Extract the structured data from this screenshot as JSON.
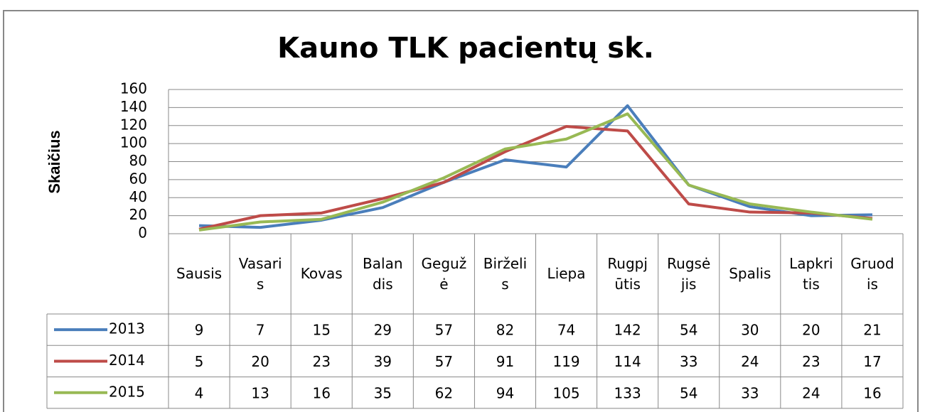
{
  "chart_data": {
    "type": "line",
    "title": "Kauno TLK pacientų sk.",
    "y_label": "Skaičius",
    "categories": [
      "Sausis",
      "Vasaris",
      "Kovas",
      "Balandis",
      "Gegužė",
      "Birželis",
      "Liepa",
      "Rugpjūtis",
      "Rugsėjis",
      "Spalis",
      "Lapkritis",
      "Gruodis"
    ],
    "series": [
      {
        "name": "2013",
        "color": "#4a7ebb",
        "values": [
          9,
          7,
          15,
          29,
          57,
          82,
          74,
          142,
          54,
          30,
          20,
          21
        ]
      },
      {
        "name": "2014",
        "color": "#be4b48",
        "values": [
          5,
          20,
          23,
          39,
          57,
          91,
          119,
          114,
          33,
          24,
          23,
          17
        ]
      },
      {
        "name": "2015",
        "color": "#98b954",
        "values": [
          4,
          13,
          16,
          35,
          62,
          94,
          105,
          133,
          54,
          33,
          24,
          16
        ]
      }
    ],
    "ylim": [
      0,
      160
    ],
    "yticks": [
      0,
      20,
      40,
      60,
      80,
      100,
      120,
      140,
      160
    ],
    "grid": true,
    "data_table": true
  }
}
